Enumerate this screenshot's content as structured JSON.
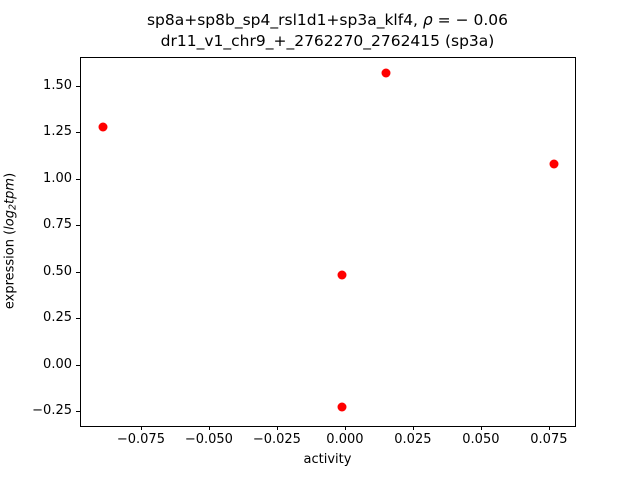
{
  "figure": {
    "title_line1_prefix": "sp8a+sp8b_sp4_rsl1d1+sp3a_klf4, ",
    "title_line1_rho": "ρ",
    "title_line1_rest": " = − 0.06",
    "title_line2": "dr11_v1_chr9_+_2762270_2762415 (sp3a)",
    "xlabel": "activity",
    "ylabel_prefix": "expression (",
    "ylabel_log": "log",
    "ylabel_sub": "2",
    "ylabel_tpm": "tpm",
    "ylabel_suffix": ")"
  },
  "chart_data": {
    "type": "scatter",
    "title": "sp8a+sp8b_sp4_rsl1d1+sp3a_klf4, ρ = −0.06",
    "subtitle": "dr11_v1_chr9_+_2762270_2762415 (sp3a)",
    "xlabel": "activity",
    "ylabel": "expression (log2tpm)",
    "points": [
      {
        "x": -0.089,
        "y": 1.28
      },
      {
        "x": 0.015,
        "y": 1.57
      },
      {
        "x": 0.077,
        "y": 1.08
      },
      {
        "x": -0.001,
        "y": 0.48
      },
      {
        "x": -0.001,
        "y": -0.23
      }
    ],
    "marker_color": "#ff0000",
    "xlim": [
      -0.0974,
      0.0846
    ],
    "ylim": [
      -0.331,
      1.656
    ],
    "xticks": [
      -0.075,
      -0.05,
      -0.025,
      0.0,
      0.025,
      0.05,
      0.075
    ],
    "xtick_labels": [
      "−0.075",
      "−0.050",
      "−0.025",
      "0.000",
      "0.025",
      "0.050",
      "0.075"
    ],
    "yticks": [
      1.5,
      1.25,
      1.0,
      0.75,
      0.5,
      0.25,
      0.0,
      -0.25
    ],
    "ytick_labels": [
      "1.50",
      "1.25",
      "1.00",
      "0.75",
      "0.50",
      "0.25",
      "0.00",
      "−0.25"
    ],
    "grid": false,
    "legend_position": "none"
  }
}
